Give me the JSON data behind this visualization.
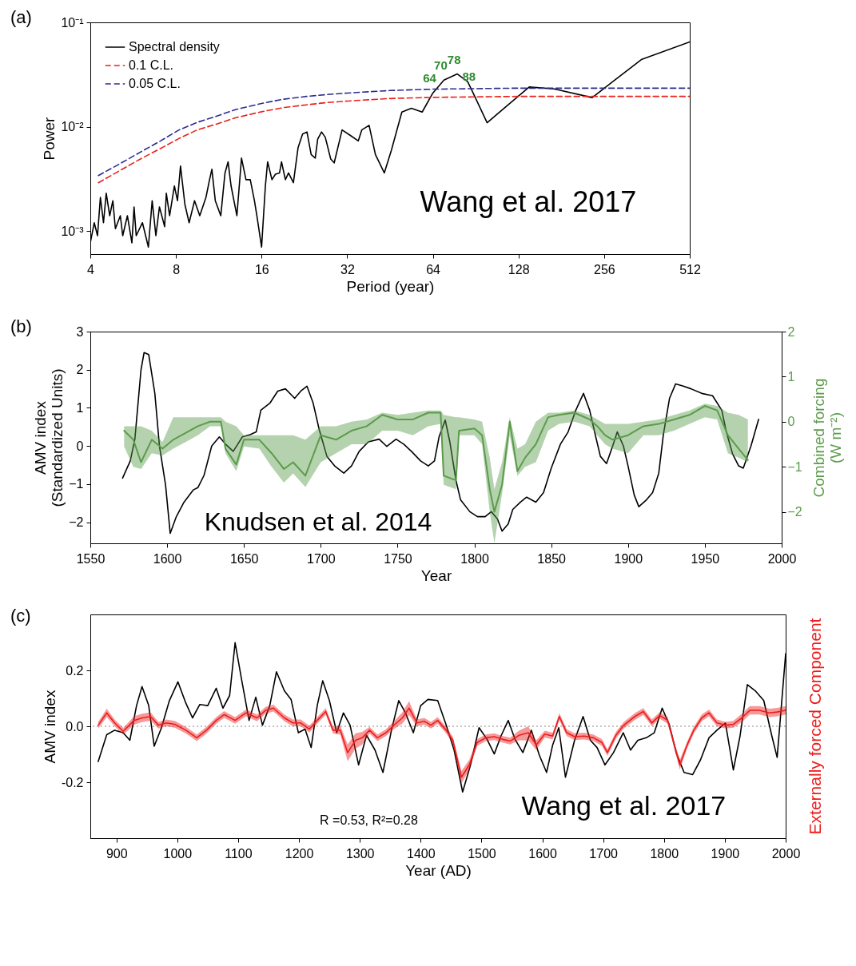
{
  "chart_data": [
    {
      "type": "line",
      "title": "(a)",
      "xlabel": "Period (year)",
      "ylabel": "Power",
      "log": "xy",
      "legend": "top left",
      "xlim": [
        4,
        512
      ],
      "xticks": [
        4,
        8,
        16,
        32,
        64,
        128,
        256,
        512
      ],
      "ylim": [
        0.0006,
        0.1
      ],
      "yticks": [
        {
          "value": 0.001,
          "label": "10⁻³"
        },
        {
          "value": 0.01,
          "label": "10⁻²"
        },
        {
          "value": 0.1,
          "label": "10⁻¹"
        }
      ],
      "series": [
        {
          "name": "Spectral density",
          "color": "#000000",
          "line_style": "solid",
          "x": [
            4.0,
            4.13,
            4.24,
            4.34,
            4.45,
            4.55,
            4.68,
            4.8,
            4.9,
            5.1,
            5.2,
            5.4,
            5.6,
            5.7,
            5.8,
            6.1,
            6.4,
            6.6,
            6.8,
            7.0,
            7.3,
            7.4,
            7.6,
            7.9,
            8.1,
            8.3,
            8.6,
            8.9,
            9.3,
            9.7,
            10.2,
            10.5,
            10.7,
            11.0,
            11.5,
            11.9,
            12.2,
            12.5,
            13.1,
            13.6,
            14.1,
            14.6,
            15.1,
            15.4,
            16.0,
            16.5,
            16.8,
            17.4,
            17.9,
            18.5,
            18.8,
            19.4,
            19.9,
            20.7,
            21.5,
            22.3,
            23.1,
            23.9,
            24.7,
            25.2,
            26.0,
            26.8,
            28.0,
            28.8,
            30.7,
            32.9,
            35.0,
            36.0,
            38.2,
            40.2,
            43.2,
            45.8,
            49.8,
            53.8,
            58.7,
            64,
            70,
            78,
            84.8,
            88,
            99.3,
            113.8,
            139.6,
            170.6,
            232.5,
            346,
            512
          ],
          "values": [
            0.00077,
            0.0012,
            0.0009,
            0.0021,
            0.0012,
            0.0023,
            0.0014,
            0.00195,
            0.00105,
            0.0014,
            0.0009,
            0.0014,
            0.00077,
            0.0017,
            0.0009,
            0.0012,
            0.0007,
            0.00195,
            0.0009,
            0.0017,
            0.0011,
            0.0023,
            0.0014,
            0.0027,
            0.00195,
            0.0042,
            0.0018,
            0.0012,
            0.00195,
            0.0014,
            0.0021,
            0.0031,
            0.0039,
            0.00195,
            0.0014,
            0.0036,
            0.0046,
            0.0027,
            0.0014,
            0.005,
            0.0031,
            0.0031,
            0.00195,
            0.0014,
            0.0007,
            0.0027,
            0.0046,
            0.0031,
            0.0035,
            0.0036,
            0.0046,
            0.0031,
            0.0036,
            0.0029,
            0.0063,
            0.0085,
            0.0089,
            0.0054,
            0.005,
            0.0076,
            0.0089,
            0.0079,
            0.0049,
            0.0045,
            0.0093,
            0.0082,
            0.0073,
            0.0093,
            0.0103,
            0.0054,
            0.0036,
            0.006,
            0.0138,
            0.015,
            0.0138,
            0.021,
            0.028,
            0.032,
            0.027,
            0.022,
            0.0109,
            0.015,
            0.024,
            0.023,
            0.019,
            0.044,
            0.065
          ]
        },
        {
          "name": "0.1 C.L.",
          "color": "#e8201a",
          "line_style": "dashed",
          "x": [
            4.27,
            5,
            6,
            7,
            8.2,
            9.5,
            11,
            13,
            16,
            19,
            23,
            27,
            32,
            45,
            64,
            128,
            256,
            512
          ],
          "values": [
            0.0029,
            0.0037,
            0.0049,
            0.0061,
            0.0077,
            0.0093,
            0.0105,
            0.0122,
            0.0139,
            0.0152,
            0.0162,
            0.017,
            0.0176,
            0.0186,
            0.0191,
            0.0195,
            0.0195,
            0.0195
          ]
        },
        {
          "name": "0.05 C.L.",
          "color": "#2b2b8f",
          "line_style": "dashed",
          "x": [
            4.27,
            5,
            6,
            7,
            8.2,
            9.5,
            11,
            13,
            16,
            19,
            23,
            27,
            32,
            45,
            64,
            128,
            256,
            512
          ],
          "values": [
            0.0034,
            0.0043,
            0.0057,
            0.0072,
            0.0093,
            0.011,
            0.0125,
            0.0146,
            0.0167,
            0.0183,
            0.0195,
            0.0203,
            0.021,
            0.0222,
            0.0229,
            0.0234,
            0.0234,
            0.0234
          ]
        }
      ],
      "annotations": [
        "Wang et al. 2017",
        {
          "text": "64",
          "x": 64,
          "y": 0.021
        },
        {
          "text": "70",
          "x": 70,
          "y": 0.028
        },
        {
          "text": "78",
          "x": 78,
          "y": 0.032
        },
        {
          "text": "88",
          "x": 88,
          "y": 0.022
        }
      ]
    },
    {
      "type": "line",
      "title": "(b)",
      "xlabel": "Year",
      "ylabel": "AMV index\n(Standardized Units)",
      "y2label": "Combined forcing\n(W m⁻²)",
      "xlim": [
        1550,
        2000
      ],
      "xticks": [
        1550,
        1600,
        1650,
        1700,
        1750,
        1800,
        1850,
        1900,
        1950,
        2000
      ],
      "ylim": [
        -2.55,
        3
      ],
      "yticks": [
        {
          "value": -2,
          "label": "−2"
        },
        {
          "value": -1,
          "label": "−1"
        },
        0,
        1,
        2,
        3
      ],
      "y2lim": [
        -2.7,
        2
      ],
      "y2ticks": [
        {
          "value": -2,
          "label": "−2"
        },
        {
          "value": -1,
          "label": "−1"
        },
        0,
        1,
        2
      ],
      "series": [
        {
          "color": "#000000",
          "x": [
            1571,
            1576,
            1579,
            1583,
            1585,
            1588,
            1592,
            1595,
            1599,
            1602,
            1606,
            1611,
            1617,
            1620,
            1624,
            1629,
            1634,
            1638,
            1643,
            1649,
            1654,
            1658,
            1661,
            1667,
            1672,
            1677,
            1683,
            1687,
            1691,
            1695,
            1699,
            1704,
            1709,
            1715,
            1720,
            1725,
            1731,
            1738,
            1743,
            1749,
            1754,
            1759,
            1765,
            1770,
            1774,
            1777,
            1781,
            1784,
            1788,
            1791,
            1797,
            1802,
            1807,
            1811,
            1815,
            1818,
            1822,
            1825,
            1830,
            1834,
            1840,
            1845,
            1850,
            1856,
            1861,
            1866,
            1871,
            1875,
            1879,
            1882,
            1886,
            1890,
            1893,
            1897,
            1900,
            1904,
            1907,
            1912,
            1916,
            1920,
            1923,
            1927,
            1931,
            1936,
            1941,
            1948,
            1955,
            1961,
            1964,
            1968,
            1972,
            1975,
            1980,
            1985
          ],
          "values": [
            -0.84,
            -0.39,
            0.18,
            2.0,
            2.45,
            2.4,
            1.38,
            0,
            -1.03,
            -2.29,
            -1.85,
            -1.47,
            -1.15,
            -1.09,
            -0.77,
            0,
            0.24,
            0.05,
            -0.14,
            0.24,
            0.3,
            0.37,
            0.94,
            1.13,
            1.44,
            1.5,
            1.25,
            1.44,
            1.57,
            1.13,
            0.43,
            -0.27,
            -0.52,
            -0.71,
            -0.52,
            -0.14,
            0.11,
            0.18,
            -0.01,
            0.18,
            0.05,
            -0.14,
            -0.39,
            -0.52,
            -0.39,
            0.24,
            0.68,
            0.11,
            -0.9,
            -1.41,
            -1.72,
            -1.85,
            -1.85,
            -1.72,
            -1.91,
            -2.23,
            -2.04,
            -1.66,
            -1.47,
            -1.34,
            -1.47,
            -1.22,
            -0.58,
            0.05,
            0.37,
            0.94,
            1.38,
            0.94,
            0.24,
            -0.27,
            -0.46,
            0,
            0.37,
            0,
            -0.52,
            -1.28,
            -1.59,
            -1.41,
            -1.22,
            -0.71,
            0.3,
            1.25,
            1.63,
            1.57,
            1.5,
            1.38,
            1.32,
            0.94,
            0.37,
            -0.2,
            -0.52,
            -0.58,
            0,
            0.7
          ]
        },
        {
          "color": "#5b9b4b",
          "axis": "y2",
          "x": [
            1572,
            1578,
            1583,
            1590,
            1597,
            1604,
            1612,
            1620,
            1628,
            1635,
            1638,
            1645,
            1650,
            1660,
            1668,
            1676,
            1682,
            1690,
            1700,
            1710,
            1720,
            1730,
            1740,
            1750,
            1760,
            1770,
            1778,
            1780,
            1788,
            1790,
            1800,
            1805,
            1810,
            1813,
            1818,
            1823,
            1828,
            1833,
            1840,
            1848,
            1855,
            1865,
            1875,
            1880,
            1885,
            1890,
            1900,
            1910,
            1920,
            1930,
            1940,
            1950,
            1958,
            1965,
            1972,
            1978
          ],
          "values": [
            -0.2,
            -0.4,
            -0.9,
            -0.4,
            -0.6,
            -0.4,
            -0.25,
            -0.1,
            0.0,
            0.0,
            -0.6,
            -0.95,
            -0.4,
            -0.4,
            -0.7,
            -1.05,
            -0.9,
            -1.2,
            -0.3,
            -0.4,
            -0.2,
            -0.1,
            0.15,
            0.05,
            0.05,
            0.2,
            0.2,
            -1.2,
            -1.3,
            -0.2,
            -0.15,
            -0.3,
            -1.5,
            -2.0,
            -1.4,
            0.0,
            -1.1,
            -0.8,
            -0.5,
            0.1,
            0.15,
            0.2,
            0.05,
            -0.1,
            -0.3,
            -0.4,
            -0.3,
            -0.1,
            -0.05,
            0.05,
            0.15,
            0.35,
            0.25,
            -0.3,
            -0.6,
            -0.85
          ],
          "lower": [
            -0.55,
            -1.0,
            -1.05,
            -0.7,
            -0.75,
            -0.6,
            -0.45,
            -0.3,
            -0.1,
            -0.1,
            -0.7,
            -1.1,
            -0.55,
            -0.6,
            -1.0,
            -1.35,
            -1.15,
            -1.45,
            -0.9,
            -0.7,
            -0.5,
            -0.5,
            -0.2,
            -0.2,
            -0.3,
            -0.1,
            -0.05,
            -1.4,
            -1.5,
            -0.3,
            -0.3,
            -0.5,
            -2.0,
            -2.7,
            -1.6,
            -0.3,
            -1.2,
            -1.0,
            -0.9,
            -0.2,
            -0.05,
            0.0,
            -0.1,
            -0.3,
            -0.5,
            -0.6,
            -0.7,
            -0.3,
            -0.3,
            -0.2,
            -0.05,
            0.1,
            0.05,
            -0.7,
            -0.8,
            -0.9
          ],
          "upper": [
            -0.1,
            -0.1,
            -0.1,
            -0.2,
            -0.45,
            0.1,
            0.1,
            0.1,
            0.1,
            0.1,
            0.0,
            -0.1,
            -0.3,
            -0.3,
            -0.3,
            -0.3,
            -0.3,
            -0.4,
            -0.1,
            -0.1,
            0.0,
            0.05,
            0.2,
            0.15,
            0.2,
            0.25,
            0.25,
            0.15,
            0.1,
            0.1,
            0.05,
            0.0,
            -0.8,
            -1.5,
            -0.9,
            0.1,
            -0.6,
            -0.5,
            0.0,
            0.2,
            0.2,
            0.25,
            0.15,
            0.05,
            -0.05,
            -0.05,
            -0.05,
            0.0,
            0.05,
            0.15,
            0.25,
            0.4,
            0.35,
            0.2,
            0.15,
            0.05
          ]
        }
      ],
      "annotations": [
        "Knudsen et al. 2014"
      ]
    },
    {
      "type": "line",
      "title": "(c)",
      "xlabel": "Year (AD)",
      "ylabel": "AMV index",
      "xlim": [
        857,
        2000
      ],
      "xticks": [
        900,
        1000,
        1100,
        1200,
        1300,
        1400,
        1500,
        1600,
        1700,
        1800,
        1900,
        2000
      ],
      "ylim": [
        -0.4,
        0.4
      ],
      "yticks": [
        {
          "value": -0.2,
          "label": "-0.2"
        },
        {
          "value": 0,
          "label": "0.0"
        },
        {
          "value": 0.2,
          "label": "0.2"
        }
      ],
      "ref_lines": [
        {
          "axis": "y",
          "value": 0,
          "color": "#888888",
          "line_style": "dotted"
        }
      ],
      "series": [
        {
          "color": "#000000",
          "x": [
            870,
            884,
            897,
            911,
            922,
            933,
            942,
            953,
            962,
            974,
            987,
            1001,
            1014,
            1025,
            1037,
            1050,
            1064,
            1075,
            1086,
            1095,
            1106,
            1118,
            1129,
            1140,
            1152,
            1163,
            1176,
            1187,
            1199,
            1210,
            1220,
            1230,
            1239,
            1250,
            1262,
            1273,
            1284,
            1298,
            1311,
            1325,
            1338,
            1352,
            1364,
            1375,
            1388,
            1400,
            1412,
            1428,
            1442,
            1455,
            1469,
            1482,
            1496,
            1509,
            1521,
            1532,
            1544,
            1555,
            1568,
            1582,
            1595,
            1607,
            1617,
            1627,
            1638,
            1653,
            1667,
            1679,
            1690,
            1703,
            1717,
            1733,
            1745,
            1757,
            1771,
            1784,
            1797,
            1809,
            1820,
            1833,
            1847,
            1860,
            1874,
            1887,
            1901,
            1914,
            1925,
            1937,
            1950,
            1964,
            1977,
            1986,
            2000
          ],
          "values": [
            -0.126,
            -0.03,
            -0.014,
            -0.023,
            -0.05,
            0.074,
            0.142,
            0.074,
            -0.071,
            -0.005,
            0.092,
            0.159,
            0.083,
            0.03,
            0.078,
            0.074,
            0.136,
            0.065,
            0.11,
            0.299,
            0.163,
            0.021,
            0.104,
            0.004,
            0.074,
            0.195,
            0.127,
            0.096,
            -0.023,
            -0.01,
            -0.076,
            0.074,
            0.163,
            0.092,
            -0.023,
            0.048,
            0.004,
            -0.138,
            -0.032,
            -0.085,
            -0.165,
            -0.014,
            0.092,
            0.048,
            -0.023,
            0.074,
            0.096,
            0.092,
            0.004,
            -0.085,
            -0.235,
            -0.138,
            -0.005,
            -0.046,
            -0.099,
            -0.035,
            0.021,
            -0.046,
            -0.094,
            -0.014,
            -0.103,
            -0.165,
            -0.067,
            -0.005,
            -0.182,
            -0.05,
            0.035,
            -0.05,
            -0.076,
            -0.138,
            -0.094,
            -0.023,
            -0.085,
            -0.05,
            -0.041,
            -0.023,
            0.065,
            0.004,
            -0.094,
            -0.165,
            -0.173,
            -0.12,
            -0.041,
            -0.014,
            0.012,
            -0.156,
            -0.035,
            0.149,
            0.127,
            0.092,
            -0.032,
            -0.111,
            0.26
          ]
        },
        {
          "name": "Externally forced Component",
          "color": "#ee1c1c",
          "x": [
            870,
            884,
            897,
            911,
            929,
            942,
            956,
            969,
            982,
            996,
            1014,
            1032,
            1048,
            1064,
            1077,
            1095,
            1113,
            1131,
            1145,
            1158,
            1176,
            1190,
            1203,
            1217,
            1230,
            1244,
            1256,
            1268,
            1280,
            1293,
            1304,
            1316,
            1329,
            1343,
            1356,
            1370,
            1381,
            1394,
            1406,
            1417,
            1428,
            1442,
            1453,
            1467,
            1480,
            1493,
            1507,
            1521,
            1534,
            1547,
            1562,
            1577,
            1590,
            1604,
            1617,
            1628,
            1640,
            1653,
            1669,
            1684,
            1698,
            1707,
            1721,
            1734,
            1752,
            1766,
            1780,
            1793,
            1806,
            1817,
            1826,
            1838,
            1849,
            1862,
            1874,
            1887,
            1901,
            1914,
            1928,
            1941,
            1957,
            1973,
            1986,
            2000
          ],
          "values": [
            0.004,
            0.048,
            0.012,
            -0.018,
            0.021,
            0.03,
            0.035,
            0.004,
            0.012,
            0.007,
            -0.014,
            -0.041,
            -0.014,
            0.021,
            0.042,
            0.021,
            0.048,
            0.03,
            0.057,
            0.065,
            0.03,
            0.012,
            0.012,
            -0.01,
            0.021,
            0.053,
            -0.014,
            -0.014,
            -0.094,
            -0.05,
            -0.041,
            -0.014,
            -0.041,
            -0.023,
            0.004,
            0.03,
            0.065,
            0.012,
            0.018,
            0.004,
            0.021,
            -0.014,
            -0.05,
            -0.182,
            -0.138,
            -0.058,
            -0.041,
            -0.037,
            -0.046,
            -0.053,
            -0.032,
            -0.023,
            -0.067,
            -0.028,
            -0.035,
            0.035,
            -0.023,
            -0.037,
            -0.035,
            -0.041,
            -0.058,
            -0.094,
            -0.032,
            0.004,
            0.035,
            0.053,
            0.012,
            0.039,
            0.021,
            -0.067,
            -0.138,
            -0.067,
            -0.014,
            0.03,
            0.048,
            0.012,
            0.004,
            0.007,
            0.03,
            0.057,
            0.057,
            0.048,
            0.051,
            0.057
          ],
          "lower": [
            -0.008,
            0.033,
            0.0,
            -0.03,
            0.006,
            0.015,
            0.02,
            -0.008,
            0.0,
            -0.005,
            -0.026,
            -0.053,
            -0.026,
            0.009,
            0.03,
            0.009,
            0.036,
            0.018,
            0.045,
            0.053,
            0.018,
            0.0,
            0.0,
            -0.022,
            0.009,
            0.041,
            -0.026,
            -0.03,
            -0.125,
            -0.08,
            -0.065,
            -0.026,
            -0.053,
            -0.035,
            -0.01,
            0.01,
            0.04,
            0.0,
            0.006,
            -0.008,
            0.009,
            -0.026,
            -0.062,
            -0.205,
            -0.155,
            -0.07,
            -0.053,
            -0.049,
            -0.058,
            -0.065,
            -0.05,
            -0.05,
            -0.085,
            -0.04,
            -0.047,
            0.023,
            -0.035,
            -0.049,
            -0.047,
            -0.053,
            -0.07,
            -0.106,
            -0.044,
            -0.008,
            0.023,
            0.041,
            0.0,
            0.027,
            0.009,
            -0.079,
            -0.155,
            -0.079,
            -0.026,
            0.018,
            0.036,
            0.0,
            -0.008,
            -0.005,
            0.015,
            0.042,
            0.042,
            0.033,
            0.036,
            0.042
          ],
          "upper": [
            0.016,
            0.063,
            0.024,
            -0.006,
            0.036,
            0.045,
            0.05,
            0.016,
            0.024,
            0.019,
            -0.002,
            -0.029,
            -0.002,
            0.033,
            0.054,
            0.033,
            0.06,
            0.042,
            0.069,
            0.077,
            0.042,
            0.024,
            0.024,
            0.002,
            0.033,
            0.065,
            -0.002,
            0.002,
            -0.065,
            -0.025,
            -0.02,
            -0.002,
            -0.029,
            -0.011,
            0.018,
            0.05,
            0.09,
            0.024,
            0.03,
            0.016,
            0.033,
            -0.002,
            -0.038,
            -0.16,
            -0.12,
            -0.046,
            -0.029,
            -0.025,
            -0.034,
            -0.041,
            -0.015,
            0.0,
            -0.05,
            -0.016,
            -0.023,
            0.047,
            -0.011,
            -0.025,
            -0.023,
            -0.029,
            -0.046,
            -0.082,
            -0.02,
            0.016,
            0.047,
            0.065,
            0.024,
            0.051,
            0.033,
            -0.055,
            -0.12,
            -0.055,
            -0.002,
            0.042,
            0.06,
            0.024,
            0.016,
            0.019,
            0.045,
            0.072,
            0.072,
            0.063,
            0.066,
            0.072
          ]
        }
      ],
      "annotations": [
        "R =0.53,  R²=0.28",
        "Wang et al. 2017"
      ]
    }
  ]
}
